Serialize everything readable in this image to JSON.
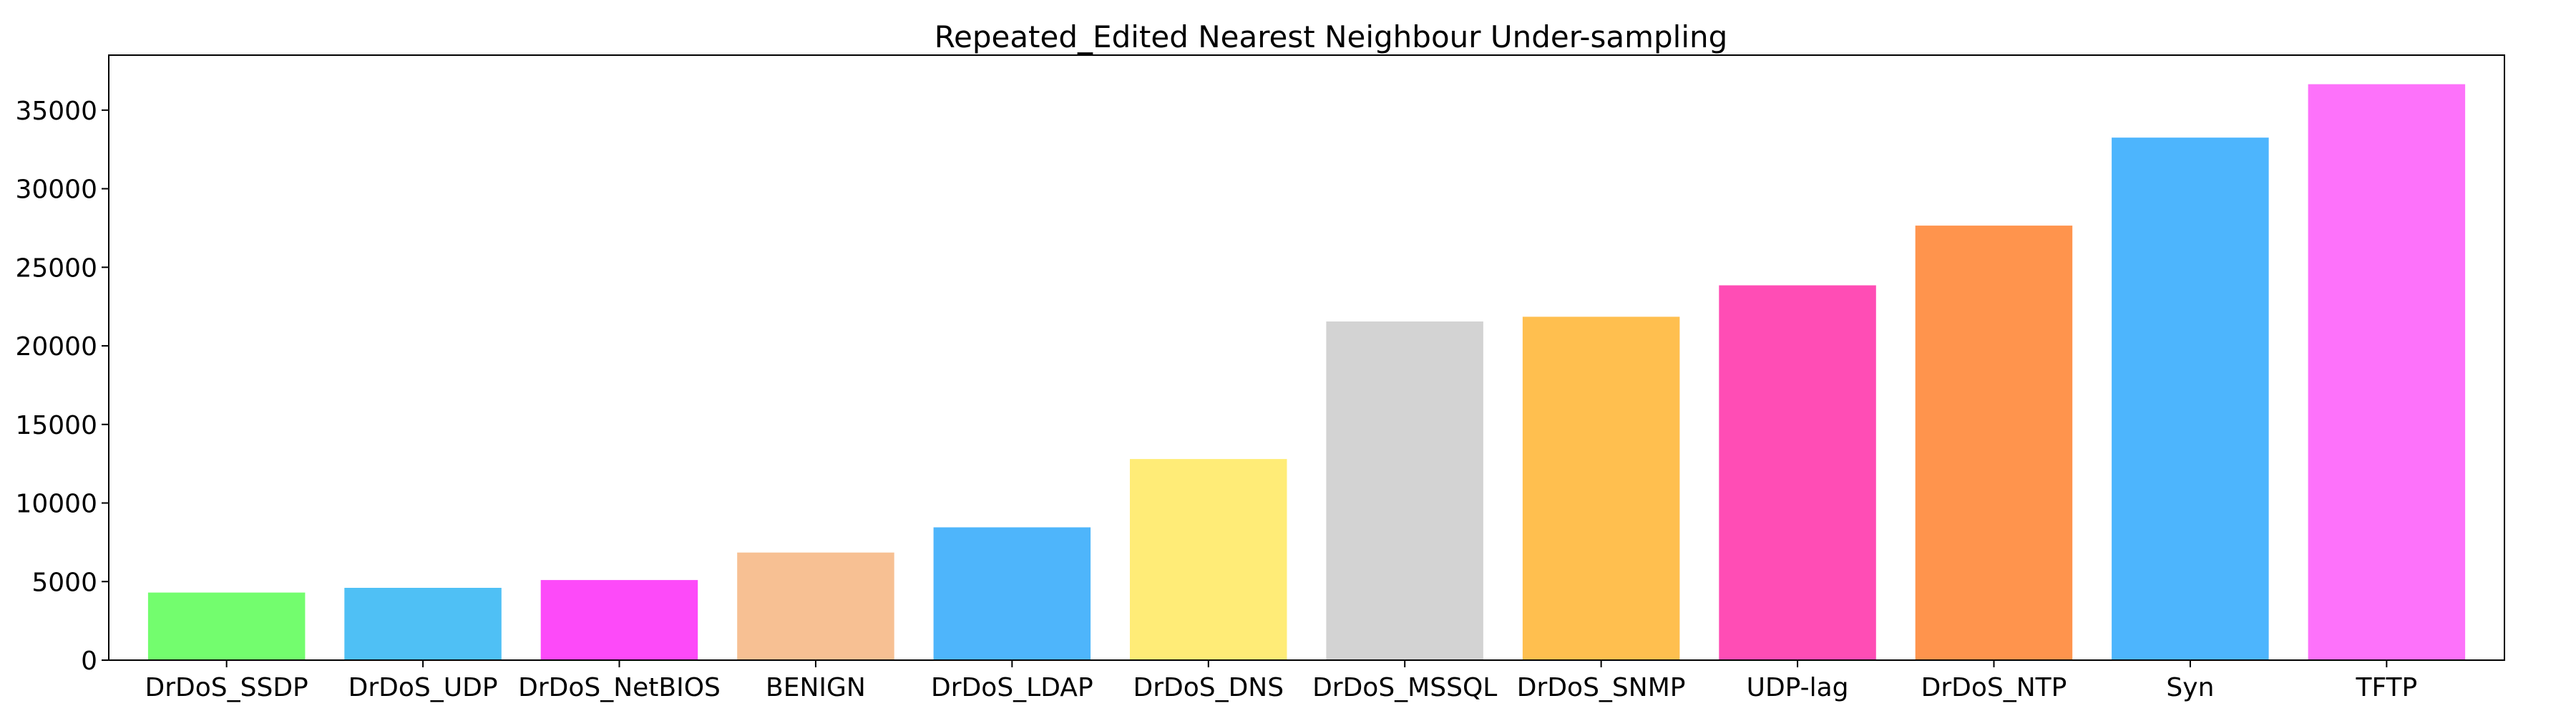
{
  "chart_data": {
    "type": "bar",
    "title": "Repeated_Edited Nearest Neighbour Under-sampling",
    "xlabel": "",
    "ylabel": "",
    "categories": [
      "DrDoS_SSDP",
      "DrDoS_UDP",
      "DrDoS_NetBIOS",
      "BENIGN",
      "DrDoS_LDAP",
      "DrDoS_DNS",
      "DrDoS_MSSQL",
      "DrDoS_SNMP",
      "UDP-lag",
      "DrDoS_NTP",
      "Syn",
      "TFTP"
    ],
    "values": [
      4300,
      4600,
      5100,
      6850,
      8450,
      12800,
      21550,
      21850,
      23850,
      27650,
      33250,
      36650
    ],
    "colors": [
      "#73fd6e",
      "#4fc0f5",
      "#fd4af9",
      "#f7c093",
      "#4eb5fb",
      "#ffec77",
      "#d3d3d3",
      "#ffbf4f",
      "#ff4db5",
      "#ff944d",
      "#4db5fd",
      "#fd72fa"
    ],
    "ylim": [
      0,
      38500
    ],
    "yticks": [
      0,
      5000,
      10000,
      15000,
      20000,
      25000,
      30000,
      35000
    ],
    "grid": false,
    "legend": "none"
  }
}
